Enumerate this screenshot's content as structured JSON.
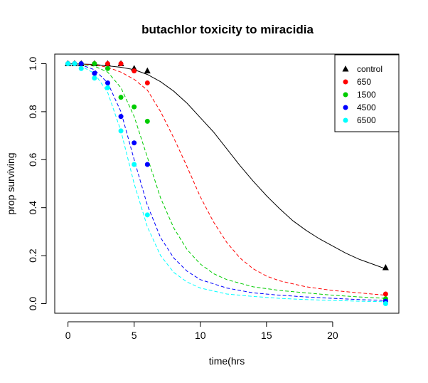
{
  "chart_data": {
    "type": "scatter",
    "title": "butachlor toxicity to miracidia",
    "xlabel": "time(hrs",
    "ylabel": "prop surviving",
    "xlim": [
      -1,
      25
    ],
    "ylim": [
      -0.04,
      1.04
    ],
    "xticks": [
      0,
      5,
      10,
      15,
      20
    ],
    "yticks": [
      0.0,
      0.2,
      0.4,
      0.6,
      0.8,
      1.0
    ],
    "xtick_labels": [
      "0",
      "5",
      "10",
      "15",
      "20"
    ],
    "ytick_labels": [
      "0.0",
      "0.2",
      "0.4",
      "0.6",
      "0.8",
      "1.0"
    ],
    "grid": false,
    "legend_position": "top-right",
    "series": [
      {
        "name": "control",
        "color": "#000000",
        "marker": "triangle",
        "line": "solid",
        "points": [
          [
            0,
            1
          ],
          [
            0.5,
            1
          ],
          [
            1,
            1
          ],
          [
            2,
            1
          ],
          [
            3,
            1
          ],
          [
            4,
            1
          ],
          [
            5,
            0.98
          ],
          [
            6,
            0.97
          ],
          [
            24,
            0.15
          ]
        ],
        "curve": [
          [
            0,
            1.0
          ],
          [
            2,
            0.997
          ],
          [
            4,
            0.985
          ],
          [
            5,
            0.975
          ],
          [
            6,
            0.955
          ],
          [
            7,
            0.925
          ],
          [
            8,
            0.885
          ],
          [
            9,
            0.835
          ],
          [
            10,
            0.775
          ],
          [
            11,
            0.715
          ],
          [
            12,
            0.645
          ],
          [
            13,
            0.575
          ],
          [
            14,
            0.51
          ],
          [
            15,
            0.45
          ],
          [
            16,
            0.395
          ],
          [
            17,
            0.345
          ],
          [
            18,
            0.305
          ],
          [
            19,
            0.27
          ],
          [
            20,
            0.24
          ],
          [
            21,
            0.21
          ],
          [
            22,
            0.185
          ],
          [
            23,
            0.165
          ],
          [
            24,
            0.145
          ]
        ]
      },
      {
        "name": "650",
        "color": "#ff0000",
        "marker": "circle",
        "line": "dashed",
        "points": [
          [
            0,
            1
          ],
          [
            0.5,
            1
          ],
          [
            1,
            1
          ],
          [
            2,
            1
          ],
          [
            3,
            1
          ],
          [
            4,
            1
          ],
          [
            5,
            0.97
          ],
          [
            6,
            0.92
          ],
          [
            24,
            0.04
          ]
        ],
        "curve": [
          [
            0,
            1.0
          ],
          [
            2,
            0.995
          ],
          [
            3,
            0.985
          ],
          [
            4,
            0.965
          ],
          [
            5,
            0.935
          ],
          [
            6,
            0.89
          ],
          [
            7,
            0.8
          ],
          [
            8,
            0.69
          ],
          [
            9,
            0.57
          ],
          [
            10,
            0.445
          ],
          [
            11,
            0.34
          ],
          [
            12,
            0.255
          ],
          [
            13,
            0.19
          ],
          [
            14,
            0.145
          ],
          [
            15,
            0.115
          ],
          [
            16,
            0.095
          ],
          [
            18,
            0.07
          ],
          [
            20,
            0.055
          ],
          [
            22,
            0.045
          ],
          [
            24,
            0.035
          ]
        ]
      },
      {
        "name": "1500",
        "color": "#00cc00",
        "marker": "circle",
        "line": "dashed",
        "points": [
          [
            0,
            1
          ],
          [
            0.5,
            1
          ],
          [
            1,
            1
          ],
          [
            2,
            1
          ],
          [
            3,
            0.98
          ],
          [
            4,
            0.86
          ],
          [
            5,
            0.82
          ],
          [
            6,
            0.76
          ],
          [
            24,
            0.02
          ]
        ],
        "curve": [
          [
            0,
            1.0
          ],
          [
            1,
            0.998
          ],
          [
            2,
            0.99
          ],
          [
            3,
            0.965
          ],
          [
            4,
            0.9
          ],
          [
            5,
            0.78
          ],
          [
            6,
            0.61
          ],
          [
            7,
            0.44
          ],
          [
            8,
            0.315
          ],
          [
            9,
            0.225
          ],
          [
            10,
            0.165
          ],
          [
            11,
            0.125
          ],
          [
            12,
            0.1
          ],
          [
            14,
            0.07
          ],
          [
            16,
            0.055
          ],
          [
            18,
            0.045
          ],
          [
            20,
            0.035
          ],
          [
            22,
            0.028
          ],
          [
            24,
            0.022
          ]
        ]
      },
      {
        "name": "4500",
        "color": "#0000ff",
        "marker": "circle",
        "line": "dashed",
        "points": [
          [
            0,
            1
          ],
          [
            0.5,
            1
          ],
          [
            1,
            1
          ],
          [
            2,
            0.96
          ],
          [
            3,
            0.92
          ],
          [
            4,
            0.78
          ],
          [
            5,
            0.67
          ],
          [
            6,
            0.58
          ],
          [
            24,
            0.01
          ]
        ],
        "curve": [
          [
            0,
            1.0
          ],
          [
            1,
            0.995
          ],
          [
            2,
            0.975
          ],
          [
            3,
            0.92
          ],
          [
            4,
            0.8
          ],
          [
            5,
            0.6
          ],
          [
            6,
            0.41
          ],
          [
            7,
            0.275
          ],
          [
            8,
            0.19
          ],
          [
            9,
            0.135
          ],
          [
            10,
            0.1
          ],
          [
            12,
            0.065
          ],
          [
            14,
            0.045
          ],
          [
            16,
            0.035
          ],
          [
            18,
            0.028
          ],
          [
            20,
            0.022
          ],
          [
            22,
            0.017
          ],
          [
            24,
            0.013
          ]
        ]
      },
      {
        "name": "6500",
        "color": "#00ffff",
        "marker": "circle",
        "line": "dashed",
        "points": [
          [
            0,
            1
          ],
          [
            0.5,
            1
          ],
          [
            1,
            0.98
          ],
          [
            2,
            0.94
          ],
          [
            3,
            0.9
          ],
          [
            4,
            0.72
          ],
          [
            5,
            0.58
          ],
          [
            6,
            0.37
          ],
          [
            24,
            0.0
          ]
        ],
        "curve": [
          [
            0,
            1.0
          ],
          [
            1,
            0.99
          ],
          [
            2,
            0.96
          ],
          [
            3,
            0.88
          ],
          [
            4,
            0.72
          ],
          [
            5,
            0.5
          ],
          [
            6,
            0.32
          ],
          [
            7,
            0.2
          ],
          [
            8,
            0.13
          ],
          [
            9,
            0.09
          ],
          [
            10,
            0.065
          ],
          [
            12,
            0.04
          ],
          [
            14,
            0.03
          ],
          [
            16,
            0.022
          ],
          [
            18,
            0.017
          ],
          [
            20,
            0.013
          ],
          [
            22,
            0.01
          ],
          [
            24,
            0.008
          ]
        ]
      }
    ]
  }
}
